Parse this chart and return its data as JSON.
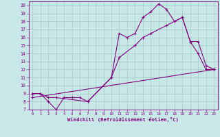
{
  "xlabel": "Windchill (Refroidissement éolien,°C)",
  "background_color": "#c8e8e8",
  "line_color": "#800080",
  "grid_color": "#a8c8c8",
  "xlim": [
    -0.5,
    23.5
  ],
  "ylim": [
    7,
    20.5
  ],
  "xticks": [
    0,
    1,
    2,
    3,
    4,
    5,
    6,
    7,
    8,
    9,
    10,
    11,
    12,
    13,
    14,
    15,
    16,
    17,
    18,
    19,
    20,
    21,
    22,
    23
  ],
  "yticks": [
    7,
    8,
    9,
    10,
    11,
    12,
    13,
    14,
    15,
    16,
    17,
    18,
    19,
    20
  ],
  "lines": [
    {
      "x": [
        0,
        1,
        2,
        3,
        4,
        5,
        6,
        7,
        10,
        11,
        12,
        13,
        14,
        15,
        16,
        17,
        18,
        19,
        20,
        21,
        22,
        23
      ],
      "y": [
        9,
        9,
        8,
        7,
        8.5,
        8.5,
        8.5,
        8,
        11,
        16.5,
        16,
        16.5,
        18.5,
        19.2,
        20.2,
        19.5,
        18,
        18.5,
        15.5,
        14,
        12,
        12
      ]
    },
    {
      "x": [
        0,
        1,
        2,
        3,
        7,
        10,
        11,
        13,
        14,
        15,
        17,
        19,
        20,
        21,
        22,
        23
      ],
      "y": [
        9,
        9,
        8.5,
        8.5,
        8,
        11,
        13.5,
        15,
        16,
        16.5,
        17.5,
        18.5,
        15.5,
        15.5,
        12.5,
        12
      ]
    },
    {
      "x": [
        0,
        23
      ],
      "y": [
        8.5,
        12
      ]
    }
  ]
}
